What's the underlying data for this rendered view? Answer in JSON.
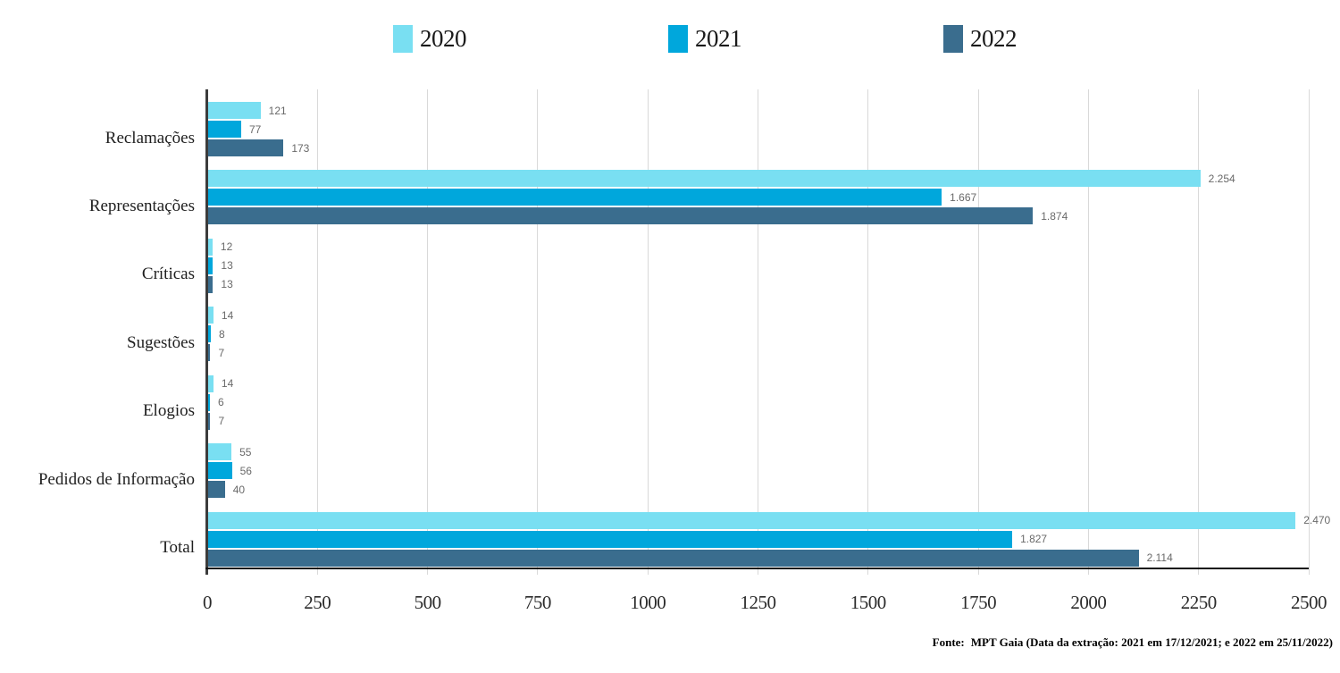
{
  "footer": {
    "source_prefix": "Fonte:",
    "source_text": "MPT Gaia (Data da extração: 2021 em 17/12/2021; e 2022 em 25/11/2022)"
  },
  "chart_data": {
    "type": "bar",
    "orientation": "horizontal",
    "title": "",
    "xlabel": "",
    "ylabel": "",
    "xlim": [
      0,
      2500
    ],
    "x_ticks": [
      0,
      250,
      500,
      750,
      1000,
      1250,
      1500,
      1750,
      2000,
      2250,
      2500
    ],
    "grid": true,
    "legend_position": "top",
    "categories": [
      "Reclamações",
      "Representações",
      "Críticas",
      "Sugestões",
      "Elogios",
      "Pedidos de Informação",
      "Total"
    ],
    "series": [
      {
        "name": "2020",
        "color": "#79DFF2",
        "values": [
          121,
          2254,
          12,
          14,
          14,
          55,
          2470
        ],
        "labels": [
          "121",
          "2.254",
          "12",
          "14",
          "14",
          "55",
          "2.470"
        ]
      },
      {
        "name": "2021",
        "color": "#00A7DC",
        "values": [
          77,
          1667,
          13,
          8,
          6,
          56,
          1827
        ],
        "labels": [
          "77",
          "1.667",
          "13",
          "8",
          "6",
          "56",
          "1.827"
        ]
      },
      {
        "name": "2022",
        "color": "#3A6D8E",
        "values": [
          173,
          1874,
          13,
          7,
          7,
          40,
          2114
        ],
        "labels": [
          "173",
          "1.874",
          "13",
          "7",
          "7",
          "40",
          "2.114"
        ]
      }
    ]
  }
}
